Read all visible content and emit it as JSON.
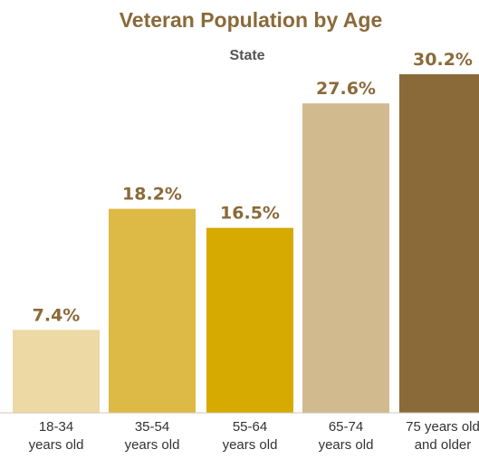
{
  "chart_data": {
    "type": "bar",
    "title": "Veteran Population by Age",
    "subtitle": "State",
    "categories": [
      [
        "18-34",
        "years old"
      ],
      [
        "35-54",
        "years old"
      ],
      [
        "55-64",
        "years old"
      ],
      [
        "65-74",
        "years old"
      ],
      [
        "75 years old",
        "and older"
      ]
    ],
    "values": [
      7.4,
      18.2,
      16.5,
      27.6,
      30.2
    ],
    "value_labels": [
      "7.4%",
      "18.2%",
      "16.5%",
      "27.6%",
      "30.2%"
    ],
    "colors": [
      "#ecd9a3",
      "#ddb945",
      "#d6aa00",
      "#d2ba8f",
      "#8b6a3a"
    ],
    "ylim": [
      0,
      30.2
    ],
    "grid": false,
    "legend": "none"
  }
}
